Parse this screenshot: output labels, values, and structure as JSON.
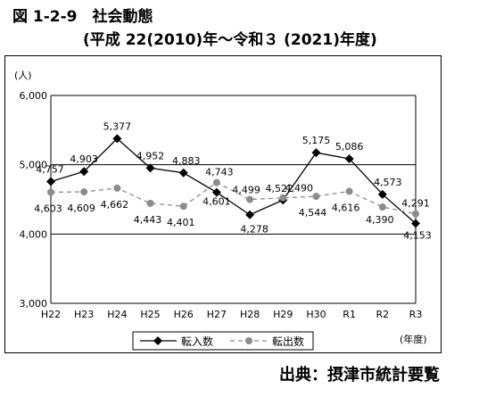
{
  "figure": {
    "title": "図 1-2-9　社会動態",
    "subtitle": "(平成 22(2010)年～令和３ (2021)年度)",
    "source": "出典：摂津市統計要覧"
  },
  "chart_data": {
    "type": "line",
    "y_unit": "(人)",
    "x_unit": "(年度)",
    "categories": [
      "H22",
      "H23",
      "H24",
      "H25",
      "H26",
      "H27",
      "H28",
      "H29",
      "H30",
      "R1",
      "R2",
      "R3"
    ],
    "ylim": [
      3000,
      6000
    ],
    "yticks": [
      3000,
      4000,
      5000,
      6000
    ],
    "ytick_labels": [
      "3,000",
      "4,000",
      "5,000",
      "6,000"
    ],
    "grid": "horizontal",
    "legend_position": "bottom-center",
    "series": [
      {
        "name": "転入数",
        "style": "solid",
        "marker": "diamond",
        "color": "#000000",
        "values": [
          4757,
          4903,
          5377,
          4952,
          4883,
          4601,
          4278,
          4490,
          5175,
          5086,
          4573,
          4153
        ],
        "labels": [
          "4,757",
          "4,903",
          "5,377",
          "4,952",
          "4,883",
          "4,601",
          "4,278",
          "4,490",
          "5,175",
          "5,086",
          "4,573",
          "4,153"
        ]
      },
      {
        "name": "転出数",
        "style": "dashed",
        "marker": "circle",
        "color": "#8c8c8c",
        "values": [
          4603,
          4609,
          4662,
          4443,
          4401,
          4743,
          4499,
          4522,
          4544,
          4616,
          4390,
          4291
        ],
        "labels": [
          "4,603",
          "4,609",
          "4,662",
          "4,443",
          "4,401",
          "4,743",
          "4,499",
          "4,522",
          "4,544",
          "4,616",
          "4,390",
          "4,291"
        ]
      }
    ]
  }
}
